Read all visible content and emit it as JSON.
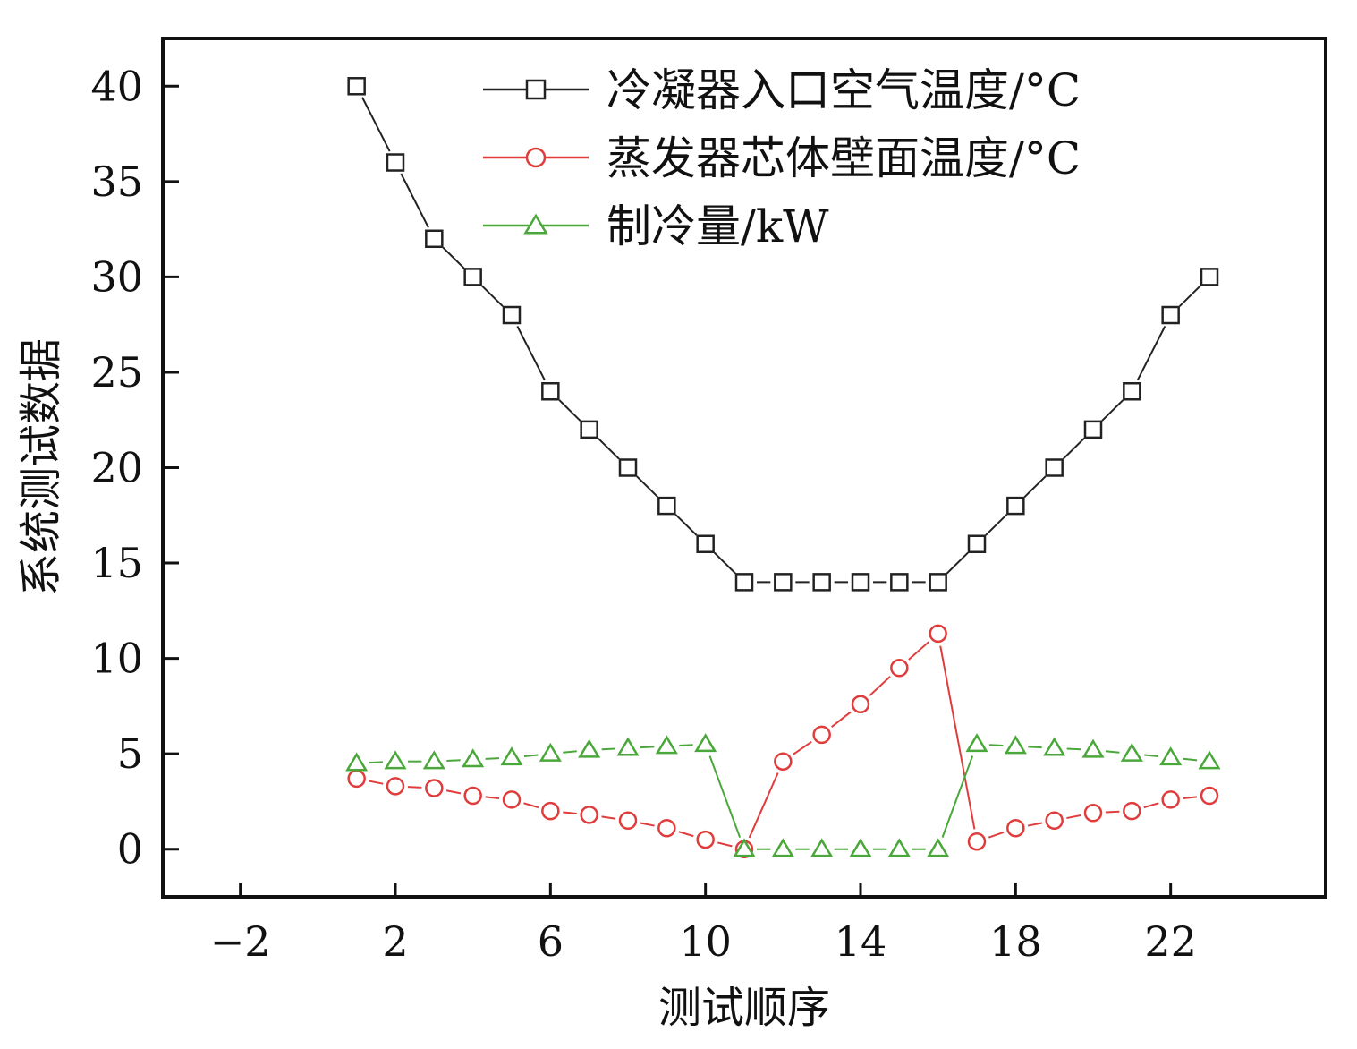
{
  "chart_data": {
    "type": "line",
    "xlabel": "测试顺序",
    "ylabel": "系统测试数据",
    "xlim": [
      -4,
      26
    ],
    "ylim": [
      -2.5,
      42.5
    ],
    "x_ticks": [
      -2,
      2,
      6,
      10,
      14,
      18,
      22
    ],
    "x_tick_labels": [
      "−2",
      "2",
      "6",
      "10",
      "14",
      "18",
      "22"
    ],
    "y_ticks": [
      0,
      5,
      10,
      15,
      20,
      25,
      30,
      35,
      40
    ],
    "y_tick_labels": [
      "0",
      "5",
      "10",
      "15",
      "20",
      "25",
      "30",
      "35",
      "40"
    ],
    "grid": false,
    "legend_position": "top-right",
    "x": [
      1,
      2,
      3,
      4,
      5,
      6,
      7,
      8,
      9,
      10,
      11,
      12,
      13,
      14,
      15,
      16,
      17,
      18,
      19,
      20,
      21,
      22,
      23
    ],
    "series": [
      {
        "name": "冷凝器入口空气温度/°C",
        "color": "#222222",
        "marker": "square",
        "values": [
          40,
          36,
          32,
          30,
          28,
          24,
          22,
          20,
          18,
          16,
          14,
          14,
          14,
          14,
          14,
          14,
          16,
          18,
          20,
          22,
          24,
          28,
          30
        ]
      },
      {
        "name": "蒸发器芯体壁面温度/°C",
        "color": "#e03c3c",
        "marker": "circle",
        "values": [
          3.7,
          3.3,
          3.2,
          2.8,
          2.6,
          2.0,
          1.8,
          1.5,
          1.1,
          0.5,
          0,
          4.6,
          6.0,
          7.6,
          9.5,
          11.3,
          0.4,
          1.1,
          1.5,
          1.9,
          2.0,
          2.6,
          2.8
        ]
      },
      {
        "name": "制冷量/kW",
        "color": "#4aa83a",
        "marker": "triangle",
        "values": [
          4.5,
          4.6,
          4.6,
          4.7,
          4.8,
          5.0,
          5.2,
          5.3,
          5.4,
          5.5,
          0,
          0,
          0,
          0,
          0,
          0,
          5.5,
          5.4,
          5.3,
          5.2,
          5.0,
          4.8,
          4.6
        ]
      }
    ]
  }
}
